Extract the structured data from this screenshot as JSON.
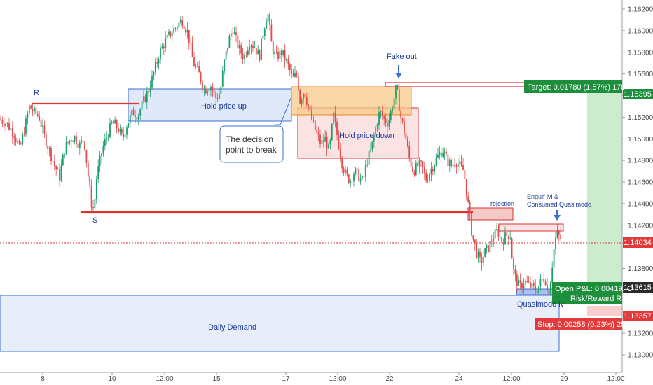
{
  "chart_data": {
    "type": "candlestick",
    "ylim": [
      1.128,
      1.1635
    ],
    "y_ticks": [
      "1.16200",
      "1.16000",
      "1.15800",
      "1.15600",
      "1.15400",
      "1.15200",
      "1.15000",
      "1.14800",
      "1.14600",
      "1.14400",
      "1.14200",
      "1.13800",
      "1.13600",
      "1.13200",
      "1.13000"
    ],
    "x_ticks": [
      "8",
      "10",
      "12:00",
      "15",
      "17",
      "12:00",
      "22",
      "24",
      "12:00",
      "29",
      "12:00"
    ],
    "price_badges": {
      "target": "1.15395",
      "current": "1.14034",
      "entry": "1.13615",
      "stop": "1.13357"
    },
    "levels": {
      "resistance": 1.1535,
      "support": 1.1432,
      "current": 1.14034
    },
    "annotations": {
      "R": "R",
      "S": "S",
      "hold_up": "Hold price up",
      "hold_down": "Hold price down",
      "decision_1": "The decision",
      "decision_2": "point to break",
      "fake_out": "Fake out",
      "rejection": "rejection",
      "engulf_1": "Engulf lvl &",
      "engulf_2": "Consumed Quasimodo",
      "quasimodo": "Quasimodo lvl",
      "daily_demand": "Daily Demand"
    },
    "trade": {
      "target_label": "Target: 0.01780 (1.57%) 178.",
      "pnl_label": "Open P&L: 0.00419, C",
      "rr_label": "Risk/Reward Ratio",
      "stop_label": "Stop: 0.00258 (0.23%) 25."
    },
    "path": [
      [
        0,
        1.1518
      ],
      [
        10,
        1.1514
      ],
      [
        20,
        1.1505
      ],
      [
        28,
        1.149
      ],
      [
        36,
        1.1512
      ],
      [
        42,
        1.153
      ],
      [
        48,
        1.1525
      ],
      [
        56,
        1.152
      ],
      [
        62,
        1.1505
      ],
      [
        70,
        1.149
      ],
      [
        78,
        1.1475
      ],
      [
        85,
        1.1465
      ],
      [
        92,
        1.149
      ],
      [
        98,
        1.1498
      ],
      [
        106,
        1.1502
      ],
      [
        114,
        1.1494
      ],
      [
        120,
        1.15
      ],
      [
        125,
        1.147
      ],
      [
        130,
        1.1442
      ],
      [
        134,
        1.1434
      ],
      [
        138,
        1.1465
      ],
      [
        146,
        1.149
      ],
      [
        154,
        1.1505
      ],
      [
        160,
        1.1515
      ],
      [
        168,
        1.151
      ],
      [
        175,
        1.15
      ],
      [
        182,
        1.1515
      ],
      [
        190,
        1.1525
      ],
      [
        197,
        1.1522
      ],
      [
        205,
        1.1535
      ],
      [
        212,
        1.1545
      ],
      [
        220,
        1.1562
      ],
      [
        228,
        1.158
      ],
      [
        236,
        1.159
      ],
      [
        244,
        1.1598
      ],
      [
        252,
        1.1604
      ],
      [
        260,
        1.161
      ],
      [
        268,
        1.1598
      ],
      [
        276,
        1.157
      ],
      [
        284,
        1.156
      ],
      [
        292,
        1.1545
      ],
      [
        300,
        1.155
      ],
      [
        308,
        1.1538
      ],
      [
        314,
        1.1542
      ],
      [
        320,
        1.157
      ],
      [
        326,
        1.159
      ],
      [
        332,
        1.1602
      ],
      [
        340,
        1.1585
      ],
      [
        348,
        1.1575
      ],
      [
        356,
        1.159
      ],
      [
        364,
        1.1585
      ],
      [
        370,
        1.1575
      ],
      [
        376,
        1.16
      ],
      [
        382,
        1.1618
      ],
      [
        388,
        1.1585
      ],
      [
        394,
        1.1575
      ],
      [
        402,
        1.158
      ],
      [
        410,
        1.157
      ],
      [
        418,
        1.1555
      ],
      [
        424,
        1.156
      ],
      [
        428,
        1.1535
      ],
      [
        434,
        1.1545
      ],
      [
        440,
        1.153
      ],
      [
        446,
        1.1515
      ],
      [
        452,
        1.1505
      ],
      [
        458,
        1.1495
      ],
      [
        464,
        1.15
      ],
      [
        470,
        1.1488
      ],
      [
        476,
        1.1522
      ],
      [
        482,
        1.15
      ],
      [
        488,
        1.1478
      ],
      [
        494,
        1.1465
      ],
      [
        500,
        1.1462
      ],
      [
        506,
        1.147
      ],
      [
        512,
        1.1465
      ],
      [
        518,
        1.146
      ],
      [
        524,
        1.148
      ],
      [
        530,
        1.149
      ],
      [
        536,
        1.151
      ],
      [
        542,
        1.1525
      ],
      [
        548,
        1.1518
      ],
      [
        554,
        1.1515
      ],
      [
        560,
        1.153
      ],
      [
        566,
        1.1548
      ],
      [
        572,
        1.152
      ],
      [
        578,
        1.1505
      ],
      [
        584,
        1.1482
      ],
      [
        590,
        1.147
      ],
      [
        596,
        1.1475
      ],
      [
        602,
        1.1475
      ],
      [
        608,
        1.1462
      ],
      [
        614,
        1.147
      ],
      [
        620,
        1.1478
      ],
      [
        626,
        1.1485
      ],
      [
        632,
        1.149
      ],
      [
        638,
        1.148
      ],
      [
        644,
        1.1475
      ],
      [
        650,
        1.148
      ],
      [
        656,
        1.1475
      ],
      [
        662,
        1.147
      ],
      [
        668,
        1.144
      ],
      [
        674,
        1.141
      ],
      [
        680,
        1.1395
      ],
      [
        686,
        1.1385
      ],
      [
        692,
        1.1395
      ],
      [
        698,
        1.14
      ],
      [
        704,
        1.141
      ],
      [
        710,
        1.1415
      ],
      [
        716,
        1.1405
      ],
      [
        722,
        1.141
      ],
      [
        728,
        1.1412
      ],
      [
        732,
        1.138
      ],
      [
        736,
        1.137
      ],
      [
        742,
        1.1362
      ],
      [
        748,
        1.1368
      ],
      [
        754,
        1.1365
      ],
      [
        760,
        1.1362
      ],
      [
        766,
        1.136
      ],
      [
        772,
        1.1368
      ],
      [
        778,
        1.1372
      ],
      [
        782,
        1.1355
      ],
      [
        786,
        1.137
      ],
      [
        790,
        1.1395
      ],
      [
        794,
        1.1412
      ],
      [
        798,
        1.141
      ],
      [
        802,
        1.1405
      ]
    ]
  }
}
